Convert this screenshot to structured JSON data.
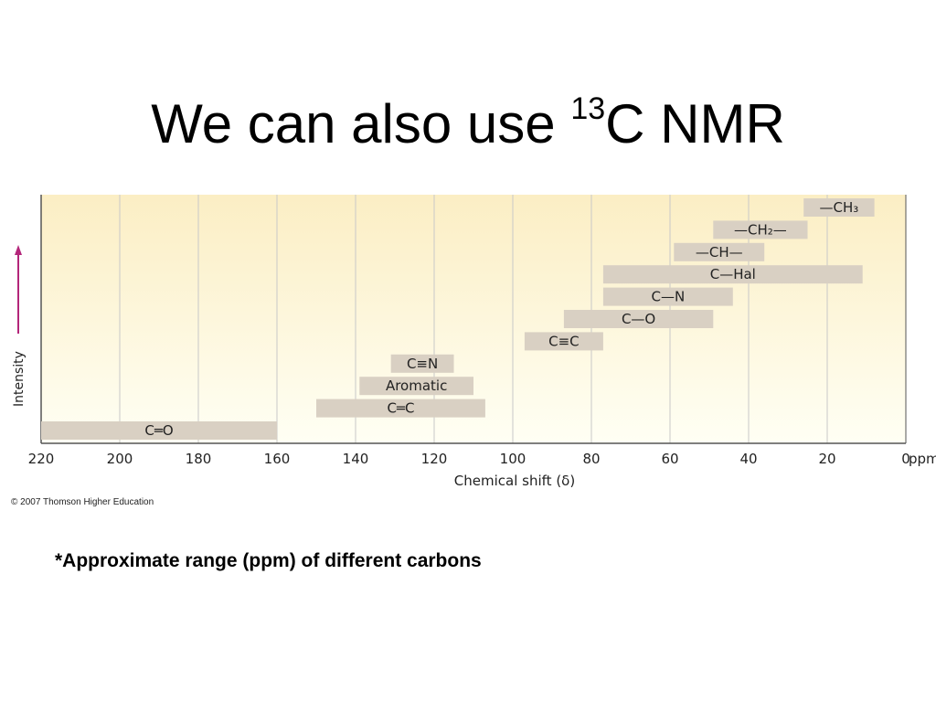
{
  "slide": {
    "title_prefix": "We can also use ",
    "title_sup": "13",
    "title_suffix": "C NMR",
    "copyright": "© 2007 Thomson Higher Education",
    "caption": "*Approximate range (ppm) of different carbons"
  },
  "chart_data": {
    "type": "bar",
    "orientation": "horizontal-range",
    "xlabel": "Chemical shift (δ)",
    "ylabel": "Intensity",
    "x_unit": "ppm",
    "xlim": [
      220,
      0
    ],
    "x_reversed": true,
    "xticks": [
      220,
      200,
      180,
      160,
      140,
      120,
      100,
      80,
      60,
      40,
      20,
      0
    ],
    "grid": true,
    "ranges": [
      {
        "label": "—CH₃",
        "start": 26,
        "end": 8
      },
      {
        "label": "—CH₂—",
        "start": 49,
        "end": 25
      },
      {
        "label": "—CH—",
        "start": 59,
        "end": 36
      },
      {
        "label": "C—Hal",
        "start": 77,
        "end": 11
      },
      {
        "label": "C—N",
        "start": 77,
        "end": 44
      },
      {
        "label": "C—O",
        "start": 87,
        "end": 49
      },
      {
        "label": "C≡C",
        "start": 97,
        "end": 77
      },
      {
        "label": "C≡N",
        "start": 131,
        "end": 115
      },
      {
        "label": "Aromatic",
        "start": 139,
        "end": 110
      },
      {
        "label": "C═C",
        "start": 150,
        "end": 107
      },
      {
        "label": "C═O",
        "start": 220,
        "end": 160
      }
    ],
    "colors": {
      "bar": "#d9d0c3",
      "bg_top": "#fbeec4",
      "bg_bottom": "#fffff4",
      "grid": "#c8c8c8",
      "axis": "#555555",
      "arrow": "#b3267a"
    }
  }
}
